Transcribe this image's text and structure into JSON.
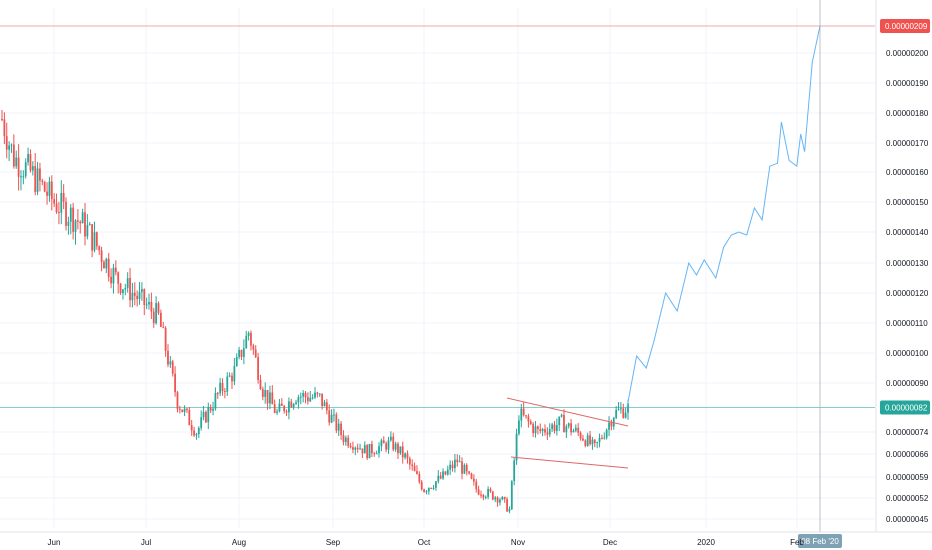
{
  "chart_data": {
    "type": "candlestick",
    "title": "",
    "price_scale": {
      "min": 4.3e-07,
      "max": 2.11e-06,
      "ticks": [
        {
          "value": 2e-06,
          "label": "0.00000200"
        },
        {
          "value": 1.9e-06,
          "label": "0.00000190"
        },
        {
          "value": 1.8e-06,
          "label": "0.00000180"
        },
        {
          "value": 1.7e-06,
          "label": "0.00000170"
        },
        {
          "value": 1.6e-06,
          "label": "0.00000160"
        },
        {
          "value": 1.5e-06,
          "label": "0.00000150"
        },
        {
          "value": 1.4e-06,
          "label": "0.00000140"
        },
        {
          "value": 1.3e-06,
          "label": "0.00000130"
        },
        {
          "value": 1.2e-06,
          "label": "0.00000120"
        },
        {
          "value": 1.1e-06,
          "label": "0.00000110"
        },
        {
          "value": 1e-06,
          "label": "0.00000100"
        },
        {
          "value": 9e-07,
          "label": "0.00000090"
        },
        {
          "value": 7.4e-07,
          "label": "0.00000074"
        },
        {
          "value": 6.6e-07,
          "label": "0.00000066"
        },
        {
          "value": 5.9e-07,
          "label": "0.00000059"
        },
        {
          "value": 5.2e-07,
          "label": "0.00000052"
        },
        {
          "value": 4.5e-07,
          "label": "0.00000045"
        }
      ]
    },
    "time_axis": {
      "ticks": [
        "Jun",
        "Jul",
        "Aug",
        "Sep",
        "Oct",
        "Nov",
        "Dec",
        "2020",
        "Feb"
      ],
      "crosshair_label": "08 Feb '20"
    },
    "horizontal_lines": [
      {
        "value": 2.09e-06,
        "label": "0.00000209",
        "color": "#e06666"
      },
      {
        "value": 8.2e-07,
        "label": "0.00000082",
        "color": "#26a69a"
      }
    ],
    "candles_close_key_points": [
      [
        0,
        1.78e-06
      ],
      [
        5,
        1.65e-06
      ],
      [
        12,
        1.6e-06
      ],
      [
        22,
        1.5e-06
      ],
      [
        35,
        1.42e-06
      ],
      [
        48,
        1.25e-06
      ],
      [
        58,
        1.18e-06
      ],
      [
        66,
        1.12e-06
      ],
      [
        74,
        8.4e-07
      ],
      [
        82,
        7.4e-07
      ],
      [
        90,
        8.5e-07
      ],
      [
        98,
        9.4e-07
      ],
      [
        104,
        1.07e-06
      ],
      [
        110,
        8.8e-07
      ],
      [
        116,
        8e-07
      ],
      [
        124,
        8.6e-07
      ],
      [
        134,
        8.5e-07
      ],
      [
        144,
        7.2e-07
      ],
      [
        154,
        6.7e-07
      ],
      [
        164,
        7e-07
      ],
      [
        170,
        6.5e-07
      ],
      [
        178,
        5.5e-07
      ],
      [
        186,
        5.9e-07
      ],
      [
        192,
        6.4e-07
      ],
      [
        200,
        5.5e-07
      ],
      [
        210,
        5.2e-07
      ],
      [
        214,
        4.8e-07
      ],
      [
        218,
        8e-07
      ],
      [
        226,
        7.4e-07
      ],
      [
        236,
        7.7e-07
      ],
      [
        244,
        7.3e-07
      ],
      [
        250,
        6.8e-07
      ],
      [
        258,
        8e-07
      ],
      [
        264,
        8.2e-07
      ]
    ],
    "projection_line": {
      "color": "#64b5f6",
      "points": [
        [
          0.0,
          8.2e-07
        ],
        [
          0.05,
          9.9e-07
        ],
        [
          0.1,
          9.5e-07
        ],
        [
          0.14,
          1.04e-06
        ],
        [
          0.2,
          1.2e-06
        ],
        [
          0.26,
          1.14e-06
        ],
        [
          0.32,
          1.3e-06
        ],
        [
          0.36,
          1.26e-06
        ],
        [
          0.4,
          1.31e-06
        ],
        [
          0.46,
          1.25e-06
        ],
        [
          0.5,
          1.35e-06
        ],
        [
          0.54,
          1.39e-06
        ],
        [
          0.58,
          1.4e-06
        ],
        [
          0.62,
          1.39e-06
        ],
        [
          0.66,
          1.48e-06
        ],
        [
          0.7,
          1.44e-06
        ],
        [
          0.74,
          1.62e-06
        ],
        [
          0.78,
          1.63e-06
        ],
        [
          0.8,
          1.77e-06
        ],
        [
          0.84,
          1.64e-06
        ],
        [
          0.88,
          1.62e-06
        ],
        [
          0.9,
          1.73e-06
        ],
        [
          0.92,
          1.67e-06
        ],
        [
          0.96,
          1.97e-06
        ],
        [
          1.0,
          2.09e-06
        ]
      ]
    },
    "wedge_lines": {
      "color": "#e06666"
    },
    "colors": {
      "up": "#26a69a",
      "down": "#ef5350",
      "grid": "#f0f3fa",
      "crosshair": "#9598a1"
    }
  }
}
